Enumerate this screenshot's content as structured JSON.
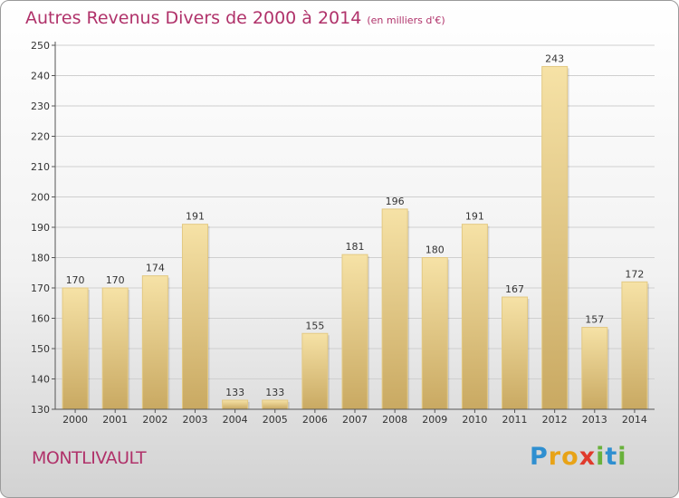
{
  "header": {
    "title": "Autres Revenus Divers de 2000 à 2014",
    "subtitle": "(en milliers d'€)"
  },
  "footer": {
    "town": "MONTLIVAULT",
    "brand_letters": [
      {
        "char": "P",
        "color": "#2f8fd0"
      },
      {
        "char": "r",
        "color": "#e8a317"
      },
      {
        "char": "o",
        "color": "#e8a317"
      },
      {
        "char": "x",
        "color": "#e03a2c"
      },
      {
        "char": "i",
        "color": "#69b13b"
      },
      {
        "char": "t",
        "color": "#2f8fd0"
      },
      {
        "char": "i",
        "color": "#69b13b"
      }
    ]
  },
  "chart_data": {
    "type": "bar",
    "title": "Autres Revenus Divers de 2000 à 2014",
    "subtitle": "(en milliers d'€)",
    "categories": [
      "2000",
      "2001",
      "2002",
      "2003",
      "2004",
      "2005",
      "2006",
      "2007",
      "2008",
      "2009",
      "2010",
      "2011",
      "2012",
      "2013",
      "2014"
    ],
    "values": [
      170,
      170,
      174,
      191,
      133,
      133,
      155,
      181,
      196,
      180,
      191,
      167,
      243,
      157,
      172
    ],
    "value_labels": [
      "170",
      "170",
      "174",
      "191",
      "133",
      "133",
      "155",
      "181",
      "196",
      "180",
      "191",
      "167",
      "243",
      "157",
      "172"
    ],
    "ylim": [
      130,
      250
    ],
    "yticks": [
      130,
      140,
      150,
      160,
      170,
      180,
      190,
      200,
      210,
      220,
      230,
      240,
      250
    ],
    "ytick_labels": [
      "130",
      "140",
      "150",
      "160",
      "170",
      "180",
      "190",
      "200",
      "210",
      "220",
      "230",
      "240",
      "250"
    ],
    "grid": true,
    "colors": {
      "bar_light": "#f5dea0",
      "bar_dark": "#c8a860",
      "axis": "#555555",
      "grid": "#cfcfcf"
    }
  }
}
